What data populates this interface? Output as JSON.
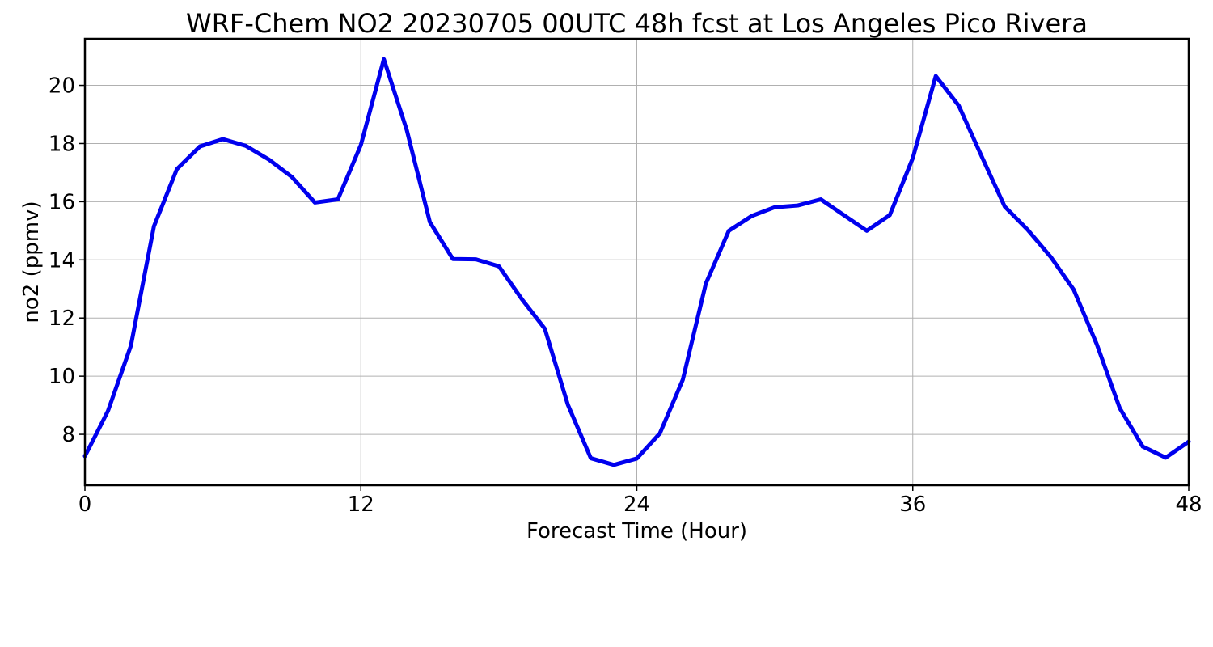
{
  "chart_data": {
    "type": "line",
    "title": "WRF-Chem NO2  20230705 00UTC 48h fcst at Los Angeles Pico Rivera",
    "xlabel": "Forecast Time (Hour)",
    "ylabel": "no2  (ppmv)",
    "xlim": [
      0,
      48
    ],
    "ylim": [
      6.25,
      21.6
    ],
    "xticks": [
      0,
      12,
      24,
      36,
      48
    ],
    "yticks": [
      8,
      10,
      12,
      14,
      16,
      18,
      20
    ],
    "grid": true,
    "series": [
      {
        "color": "#0000ee",
        "x": [
          0,
          1,
          2,
          3,
          4,
          5,
          6,
          7,
          8,
          9,
          10,
          11,
          12,
          13,
          14,
          15,
          16,
          17,
          18,
          19,
          20,
          21,
          22,
          23,
          24,
          25,
          26,
          27,
          28,
          29,
          30,
          31,
          32,
          33,
          34,
          35,
          36,
          37,
          38,
          39,
          40,
          41,
          42,
          43,
          44,
          45,
          46,
          47,
          48
        ],
        "y": [
          7.25,
          8.8,
          11.05,
          15.15,
          17.12,
          17.9,
          18.15,
          17.92,
          17.45,
          16.85,
          15.97,
          16.08,
          17.95,
          20.9,
          18.45,
          15.3,
          14.03,
          14.02,
          13.78,
          12.65,
          11.63,
          9.02,
          7.18,
          6.95,
          7.17,
          8.03,
          9.88,
          13.18,
          15.0,
          15.51,
          15.81,
          15.87,
          16.08,
          15.54,
          15.0,
          15.54,
          17.5,
          20.32,
          19.3,
          17.55,
          15.83,
          15.03,
          14.1,
          12.97,
          11.1,
          8.9,
          7.58,
          7.2,
          7.75
        ]
      }
    ]
  }
}
